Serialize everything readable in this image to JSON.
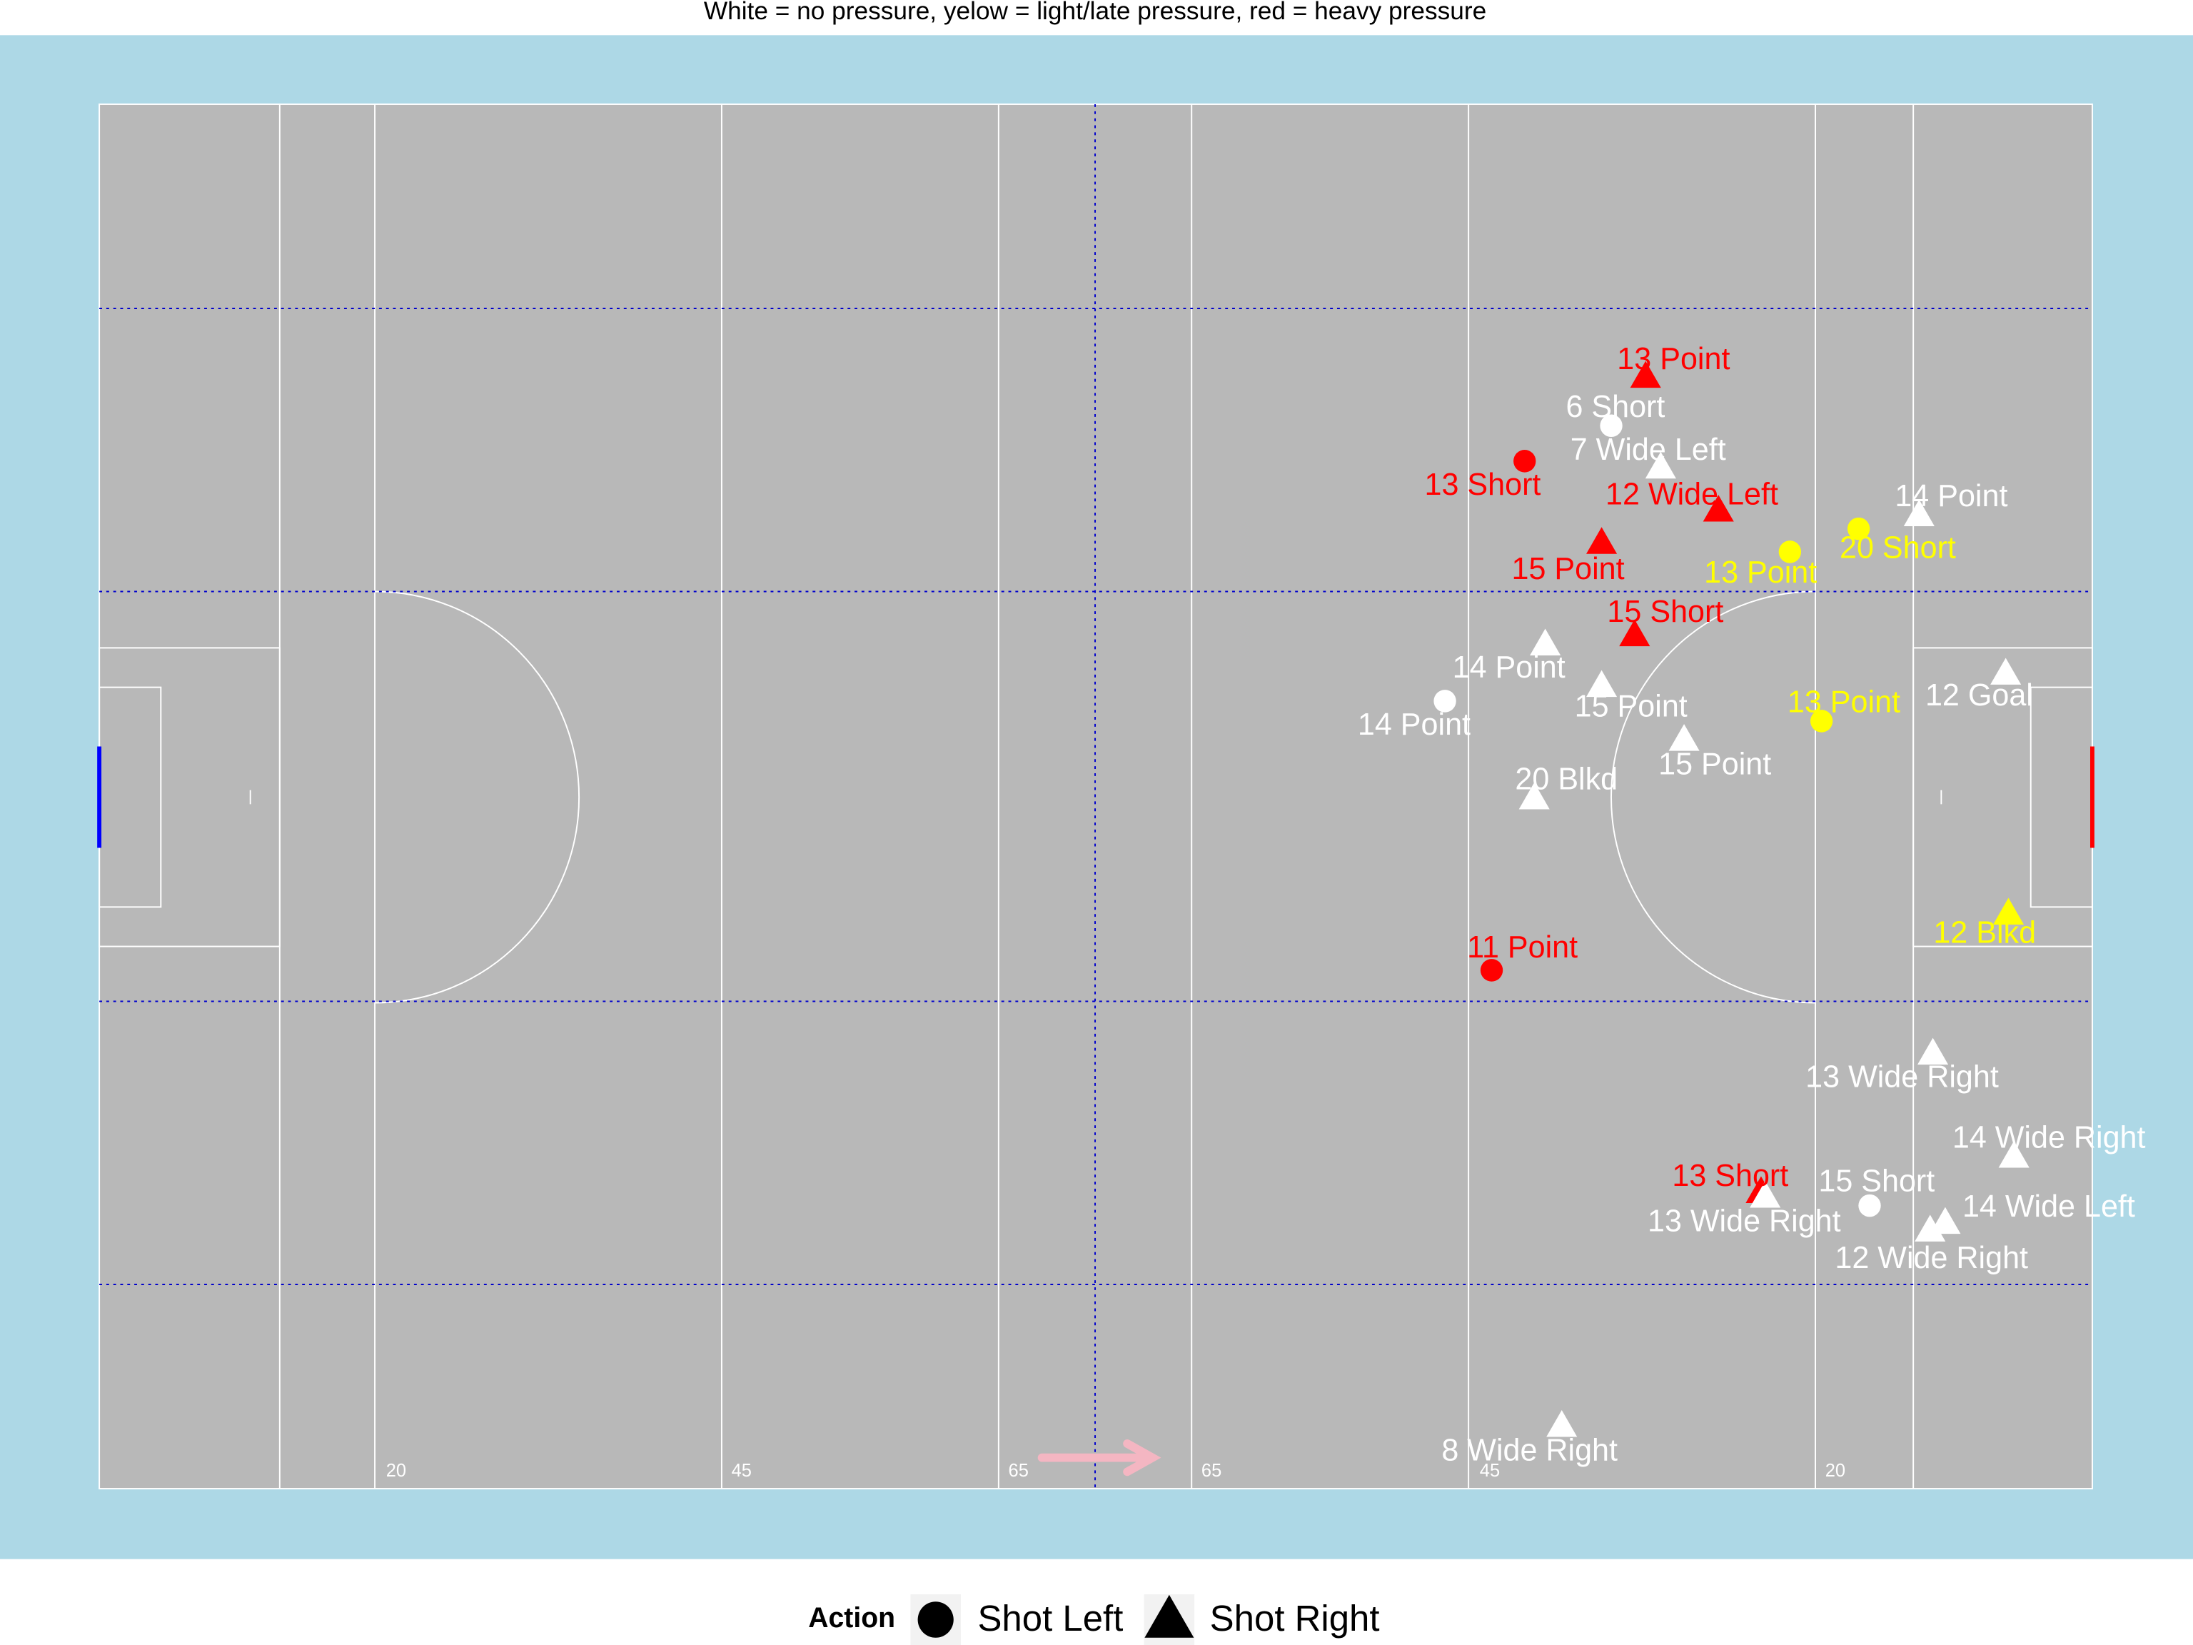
{
  "chart_data": {
    "type": "scatter",
    "title": "White = no pressure, yelow = light/late pressure, red = heavy pressure",
    "xlim": [
      0,
      145
    ],
    "ylim": [
      0,
      90
    ],
    "pitch_labels": [
      "20",
      "45",
      "65",
      "65",
      "45",
      "20"
    ],
    "legend": {
      "title": "Action",
      "entries": [
        {
          "name": "Shot Left",
          "shape": "circle"
        },
        {
          "name": "Shot Right",
          "shape": "triangle"
        }
      ]
    },
    "points": [
      {
        "x": 112.5,
        "y": 72.3,
        "shape": "triangle",
        "color": "#ff0000",
        "label": "13 Point"
      },
      {
        "x": 110.0,
        "y": 69.1,
        "shape": "circle",
        "color": "#ffffff",
        "label": "6 Short"
      },
      {
        "x": 113.6,
        "y": 66.4,
        "shape": "triangle",
        "color": "#ffffff",
        "label": "7 Wide Left"
      },
      {
        "x": 103.7,
        "y": 66.8,
        "shape": "circle",
        "color": "#ff0000",
        "label": "13 Short"
      },
      {
        "x": 117.8,
        "y": 63.6,
        "shape": "triangle",
        "color": "#ff0000",
        "label": "12 Wide Left"
      },
      {
        "x": 132.4,
        "y": 63.3,
        "shape": "triangle",
        "color": "#ffffff",
        "label": "14 Point"
      },
      {
        "x": 128.0,
        "y": 62.4,
        "shape": "circle",
        "color": "#ffff00",
        "label": "20 Short"
      },
      {
        "x": 123.0,
        "y": 60.9,
        "shape": "circle",
        "color": "#ffff00",
        "label": "13 Point"
      },
      {
        "x": 109.3,
        "y": 61.5,
        "shape": "triangle",
        "color": "#ff0000",
        "label": "15 Point"
      },
      {
        "x": 111.7,
        "y": 55.5,
        "shape": "triangle",
        "color": "#ff0000",
        "label": "15 Short"
      },
      {
        "x": 105.2,
        "y": 54.9,
        "shape": "triangle",
        "color": "#ffffff",
        "label": "14 Point"
      },
      {
        "x": 97.9,
        "y": 51.2,
        "shape": "circle",
        "color": "#ffffff",
        "label": "14 Point"
      },
      {
        "x": 109.3,
        "y": 52.2,
        "shape": "triangle",
        "color": "#ffffff",
        "label": "15 Point"
      },
      {
        "x": 138.7,
        "y": 53.0,
        "shape": "triangle",
        "color": "#ffffff",
        "label": "12 Goal"
      },
      {
        "x": 125.3,
        "y": 49.9,
        "shape": "circle",
        "color": "#ffff00",
        "label": "13 Point"
      },
      {
        "x": 115.3,
        "y": 48.7,
        "shape": "triangle",
        "color": "#ffffff",
        "label": "15 Point"
      },
      {
        "x": 104.4,
        "y": 44.9,
        "shape": "triangle",
        "color": "#ffffff",
        "label": "20 Blkd"
      },
      {
        "x": 138.9,
        "y": 37.4,
        "shape": "triangle",
        "color": "#ffff00",
        "label": "12 Blkd"
      },
      {
        "x": 101.3,
        "y": 33.7,
        "shape": "circle",
        "color": "#ff0000",
        "label": "11 Point"
      },
      {
        "x": 133.4,
        "y": 28.3,
        "shape": "triangle",
        "color": "#ffffff",
        "label": "13 Wide Right"
      },
      {
        "x": 139.3,
        "y": 21.6,
        "shape": "triangle",
        "color": "#ffffff",
        "label": "14 Wide Right"
      },
      {
        "x": 120.9,
        "y": 19.3,
        "shape": "triangle",
        "color": "#ff0000",
        "label": "13 Short"
      },
      {
        "x": 121.2,
        "y": 19.0,
        "shape": "triangle",
        "color": "#ffffff",
        "label": "13 Wide Right"
      },
      {
        "x": 128.8,
        "y": 18.4,
        "shape": "circle",
        "color": "#ffffff",
        "label": "15 Short"
      },
      {
        "x": 134.3,
        "y": 17.3,
        "shape": "triangle",
        "color": "#ffffff",
        "label": "14 Wide Left"
      },
      {
        "x": 133.2,
        "y": 16.8,
        "shape": "triangle",
        "color": "#ffffff",
        "label": "12 Wide Right"
      },
      {
        "x": 106.4,
        "y": 4.1,
        "shape": "triangle",
        "color": "#ffffff",
        "label": "8 Wide Right"
      }
    ]
  }
}
